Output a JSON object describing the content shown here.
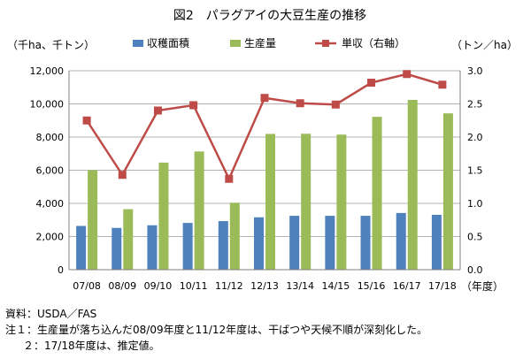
{
  "chart_data": {
    "type": "bar",
    "title": "図2　パラグアイの大豆生産の推移",
    "ylabel_left": "（千ha、千トン）",
    "ylabel_right": "（トン／ha）",
    "xlabel": "（年度）",
    "categories": [
      "07/08",
      "08/09",
      "09/10",
      "10/11",
      "11/12",
      "12/13",
      "13/14",
      "14/15",
      "15/16",
      "16/17",
      "17/18"
    ],
    "ylim_left": [
      0,
      12000
    ],
    "yticks_left": [
      "0",
      "2,000",
      "4,000",
      "6,000",
      "8,000",
      "10,000",
      "12,000"
    ],
    "ylim_right": [
      0,
      3.0
    ],
    "yticks_right": [
      "0.0",
      "0.5",
      "1.0",
      "1.5",
      "2.0",
      "2.5",
      "3.0"
    ],
    "grid": true,
    "legend_position": "top",
    "series": [
      {
        "name": "収穫面積",
        "kind": "bar",
        "axis": "left",
        "color": "#4f81bd",
        "values": [
          2640,
          2520,
          2680,
          2820,
          2930,
          3160,
          3250,
          3250,
          3250,
          3420,
          3310
        ]
      },
      {
        "name": "生産量",
        "kind": "bar",
        "axis": "left",
        "color": "#9bbb59",
        "values": [
          6000,
          3650,
          6460,
          7130,
          4040,
          8190,
          8200,
          8150,
          9220,
          10240,
          9430
        ]
      },
      {
        "name": "単収（右軸）",
        "kind": "line",
        "axis": "right",
        "color": "#be4b48",
        "values": [
          2.25,
          1.43,
          2.4,
          2.48,
          1.37,
          2.59,
          2.51,
          2.49,
          2.82,
          2.95,
          2.79
        ]
      }
    ]
  },
  "notes": {
    "source": "資料：USDA／FAS",
    "note1": "注１：生産量が落ち込んだ08/09年度と11/12年度は、干ばつや天候不順が深刻化した。",
    "note2": "２：17/18年度は、推定値。"
  }
}
